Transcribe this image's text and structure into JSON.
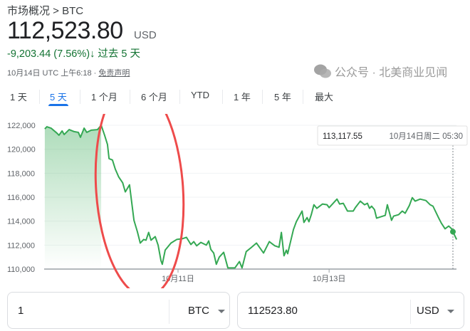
{
  "breadcrumb": "市场概况 > BTC",
  "price": "112,523.80",
  "currency": "USD",
  "change": "-9,203.44 (7.56%)",
  "change_arrow": "↓",
  "change_period": "过去 5 天",
  "meta": {
    "time": "10月14日 UTC 上午6:18 · ",
    "disclaimer": "免责声明"
  },
  "tabs": [
    {
      "label": "1 天",
      "active": false
    },
    {
      "label": "5 天",
      "active": true
    },
    {
      "label": "1 个月",
      "active": false
    },
    {
      "label": "6 个月",
      "active": false
    },
    {
      "label": "YTD",
      "active": false
    },
    {
      "label": "1 年",
      "active": false
    },
    {
      "label": "5 年",
      "active": false
    },
    {
      "label": "最大",
      "active": false
    }
  ],
  "tooltip": {
    "value": "113,117.55",
    "time": "10月14日周二 05:30"
  },
  "converter": {
    "from_value": "1",
    "from_unit": "BTC",
    "to_value": "112523.80",
    "to_unit": "USD"
  },
  "watermark": "公众号 · 北美商业见闻",
  "colors": {
    "line": "#34a853",
    "accent": "#1a73e8",
    "change": "#137333",
    "annotation": "#ee4b4b"
  },
  "chart_data": {
    "type": "line",
    "ylim": [
      110000,
      122000
    ],
    "yticks": [
      110000,
      112000,
      114000,
      116000,
      118000,
      120000,
      122000
    ],
    "ytick_labels": [
      "110,000",
      "112,000",
      "114,000",
      "116,000",
      "118,000",
      "120,000",
      "122,000"
    ],
    "xticks": [
      {
        "x": "10-11 00:00",
        "label": "10月11日"
      },
      {
        "x": "10-13 00:00",
        "label": "10月13日"
      }
    ],
    "grid": true,
    "highlight_point": {
      "x": "10-14 15:20",
      "y": 113117.55
    },
    "points": [
      [
        "10-09 05:40",
        121700
      ],
      [
        "10-09 06:20",
        121880
      ],
      [
        "10-09 07:40",
        121760
      ],
      [
        "10-09 09:30",
        121350
      ],
      [
        "10-09 10:10",
        121170
      ],
      [
        "10-09 11:10",
        121530
      ],
      [
        "10-09 11:50",
        121230
      ],
      [
        "10-09 13:25",
        121640
      ],
      [
        "10-09 15:00",
        121470
      ],
      [
        "10-09 16:20",
        121410
      ],
      [
        "10-09 17:00",
        121000
      ],
      [
        "10-09 18:10",
        121760
      ],
      [
        "10-09 19:00",
        121410
      ],
      [
        "10-09 20:25",
        121590
      ],
      [
        "10-09 22:25",
        121640
      ],
      [
        "10-09 23:35",
        122000
      ],
      [
        "10-10 00:40",
        121170
      ],
      [
        "10-10 01:35",
        120400
      ],
      [
        "10-10 02:05",
        119220
      ],
      [
        "10-10 03:10",
        119100
      ],
      [
        "10-10 04:05",
        118330
      ],
      [
        "10-10 05:10",
        117680
      ],
      [
        "10-10 06:25",
        117200
      ],
      [
        "10-10 07:15",
        116440
      ],
      [
        "10-10 08:35",
        117030
      ],
      [
        "10-10 10:00",
        114070
      ],
      [
        "10-10 11:05",
        113120
      ],
      [
        "10-10 12:00",
        112170
      ],
      [
        "10-10 13:05",
        112470
      ],
      [
        "10-10 13:50",
        112410
      ],
      [
        "10-10 14:40",
        113060
      ],
      [
        "10-10 15:25",
        112410
      ],
      [
        "10-10 16:45",
        112710
      ],
      [
        "10-10 17:40",
        112000
      ],
      [
        "10-10 18:35",
        110700
      ],
      [
        "10-10 19:00",
        110400
      ],
      [
        "10-10 19:55",
        111580
      ],
      [
        "10-10 21:45",
        112170
      ],
      [
        "10-10 23:35",
        112470
      ],
      [
        "10-11 01:20",
        112530
      ],
      [
        "10-11 02:40",
        112650
      ],
      [
        "10-11 04:05",
        112050
      ],
      [
        "10-11 05:00",
        112290
      ],
      [
        "10-11 05:55",
        111940
      ],
      [
        "10-11 07:15",
        112230
      ],
      [
        "10-11 09:00",
        112000
      ],
      [
        "10-11 09:45",
        112350
      ],
      [
        "10-11 10:25",
        111640
      ],
      [
        "10-11 11:20",
        111340
      ],
      [
        "10-11 12:10",
        110400
      ],
      [
        "10-11 13:05",
        110990
      ],
      [
        "10-11 14:30",
        111400
      ],
      [
        "10-11 15:50",
        110100
      ],
      [
        "10-11 18:05",
        110100
      ],
      [
        "10-11 19:30",
        110630
      ],
      [
        "10-11 20:20",
        110100
      ],
      [
        "10-11 21:40",
        111460
      ],
      [
        "10-11 23:05",
        111760
      ],
      [
        "10-12 00:55",
        112170
      ],
      [
        "10-12 03:10",
        111340
      ],
      [
        "10-12 05:00",
        112290
      ],
      [
        "10-12 06:45",
        111940
      ],
      [
        "10-12 08:05",
        111820
      ],
      [
        "10-12 08:50",
        113060
      ],
      [
        "10-12 09:40",
        111110
      ],
      [
        "10-12 10:25",
        111580
      ],
      [
        "10-12 10:50",
        111280
      ],
      [
        "10-12 12:40",
        113300
      ],
      [
        "10-12 13:35",
        113950
      ],
      [
        "10-12 15:25",
        114840
      ],
      [
        "10-12 16:00",
        113890
      ],
      [
        "10-12 17:00",
        114300
      ],
      [
        "10-12 17:35",
        113950
      ],
      [
        "10-12 18:20",
        114540
      ],
      [
        "10-12 19:10",
        115370
      ],
      [
        "10-12 20:05",
        115070
      ],
      [
        "10-12 21:55",
        115430
      ],
      [
        "10-12 23:20",
        115370
      ],
      [
        "10-13 00:00",
        115130
      ],
      [
        "10-13 01:05",
        115430
      ],
      [
        "10-13 02:30",
        115840
      ],
      [
        "10-13 03:20",
        115430
      ],
      [
        "10-13 04:30",
        115490
      ],
      [
        "10-13 05:50",
        114840
      ],
      [
        "10-13 07:40",
        114840
      ],
      [
        "10-13 08:20",
        115130
      ],
      [
        "10-13 09:55",
        115670
      ],
      [
        "10-13 11:15",
        115370
      ],
      [
        "10-13 12:10",
        115490
      ],
      [
        "10-13 12:50",
        115070
      ],
      [
        "10-13 13:30",
        115250
      ],
      [
        "10-13 14:25",
        114960
      ],
      [
        "10-13 15:05",
        114250
      ],
      [
        "10-13 17:50",
        114480
      ],
      [
        "10-13 18:30",
        115370
      ],
      [
        "10-13 19:50",
        114070
      ],
      [
        "10-13 20:30",
        114420
      ],
      [
        "10-13 22:05",
        114540
      ],
      [
        "10-13 23:15",
        114840
      ],
      [
        "10-14 00:10",
        114660
      ],
      [
        "10-14 01:30",
        115310
      ],
      [
        "10-14 02:25",
        115960
      ],
      [
        "10-14 03:20",
        115670
      ],
      [
        "10-14 04:55",
        115840
      ],
      [
        "10-14 06:45",
        115720
      ],
      [
        "10-14 08:05",
        115370
      ],
      [
        "10-14 09:00",
        115250
      ],
      [
        "10-14 10:50",
        114250
      ],
      [
        "10-14 11:40",
        113830
      ],
      [
        "10-14 12:50",
        113360
      ],
      [
        "10-14 14:00",
        113590
      ],
      [
        "10-14 14:55",
        113360
      ],
      [
        "10-14 15:20",
        113117.55
      ],
      [
        "10-14 16:30",
        112470
      ]
    ]
  }
}
